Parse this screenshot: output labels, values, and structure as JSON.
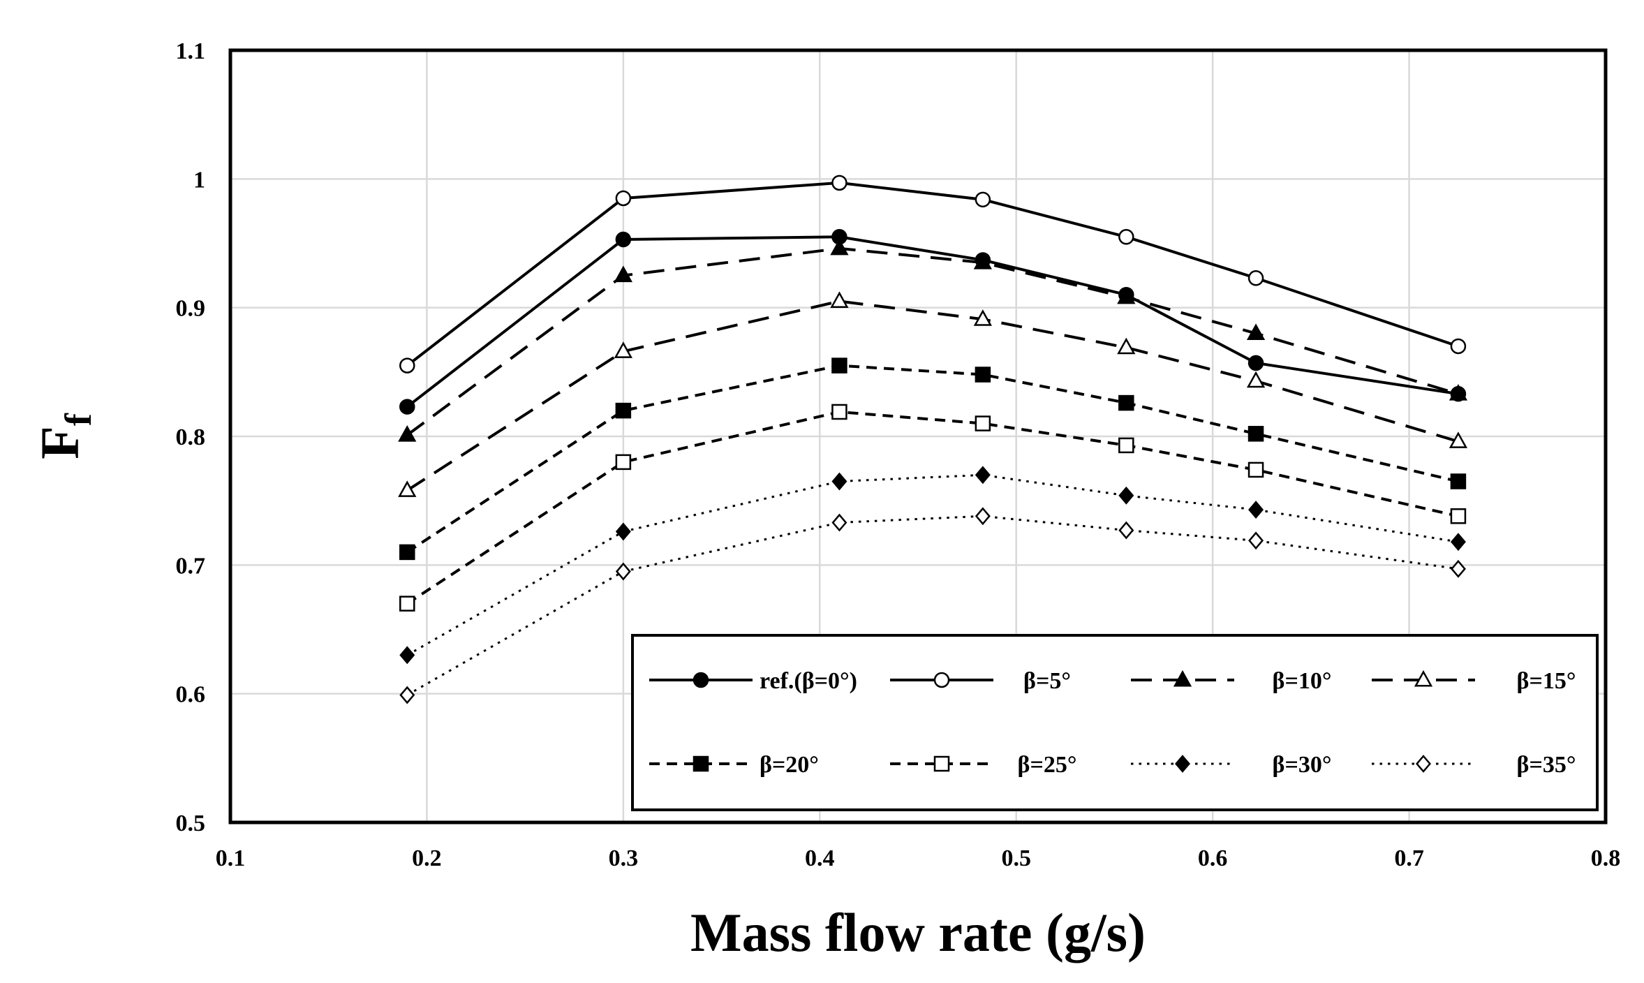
{
  "chart_data": {
    "type": "line",
    "title": "",
    "xlabel": "Mass flow rate (g/s)",
    "ylabel": "F",
    "ylabel_subscript": "f",
    "xlim": [
      0.1,
      0.8
    ],
    "ylim": [
      0.5,
      1.1
    ],
    "xticks": [
      "0.1",
      "0.2",
      "0.3",
      "0.4",
      "0.5",
      "0.6",
      "0.7",
      "0.8"
    ],
    "yticks": [
      "0.5",
      "0.6",
      "0.7",
      "0.8",
      "0.9",
      "1",
      "1.1"
    ],
    "xtick_values": [
      0.1,
      0.2,
      0.3,
      0.4,
      0.5,
      0.6,
      0.7,
      0.8
    ],
    "ytick_values": [
      0.5,
      0.6,
      0.7,
      0.8,
      0.9,
      1.0,
      1.1
    ],
    "grid": true,
    "legend_position": "bottom-right",
    "x": [
      0.19,
      0.3,
      0.41,
      0.483,
      0.556,
      0.622,
      0.725
    ],
    "series": [
      {
        "name": "ref.(β=0°)",
        "marker": "circle",
        "filled": true,
        "line": "solid",
        "values": [
          0.823,
          0.953,
          0.955,
          0.937,
          0.91,
          0.857,
          0.833
        ]
      },
      {
        "name": "β=5°",
        "marker": "circle",
        "filled": false,
        "line": "solid",
        "values": [
          0.855,
          0.985,
          0.997,
          0.984,
          0.955,
          0.923,
          0.87
        ]
      },
      {
        "name": "β=10°",
        "marker": "triangle",
        "filled": true,
        "line": "dash",
        "values": [
          0.801,
          0.925,
          0.946,
          0.935,
          0.908,
          0.88,
          0.833
        ]
      },
      {
        "name": "β=15°",
        "marker": "triangle",
        "filled": false,
        "line": "dash",
        "values": [
          0.758,
          0.866,
          0.905,
          0.891,
          0.869,
          0.843,
          0.796
        ]
      },
      {
        "name": "β=20°",
        "marker": "square",
        "filled": true,
        "line": "shortdash",
        "values": [
          0.71,
          0.82,
          0.855,
          0.848,
          0.826,
          0.802,
          0.765
        ]
      },
      {
        "name": "β=25°",
        "marker": "square",
        "filled": false,
        "line": "shortdash",
        "values": [
          0.67,
          0.78,
          0.819,
          0.81,
          0.793,
          0.774,
          0.738
        ]
      },
      {
        "name": "β=30°",
        "marker": "diamond",
        "filled": true,
        "line": "dot",
        "values": [
          0.63,
          0.726,
          0.765,
          0.77,
          0.754,
          0.743,
          0.718
        ]
      },
      {
        "name": "β=35°",
        "marker": "diamond",
        "filled": false,
        "line": "dot",
        "values": [
          0.599,
          0.695,
          0.733,
          0.738,
          0.727,
          0.719,
          0.697
        ]
      }
    ]
  }
}
